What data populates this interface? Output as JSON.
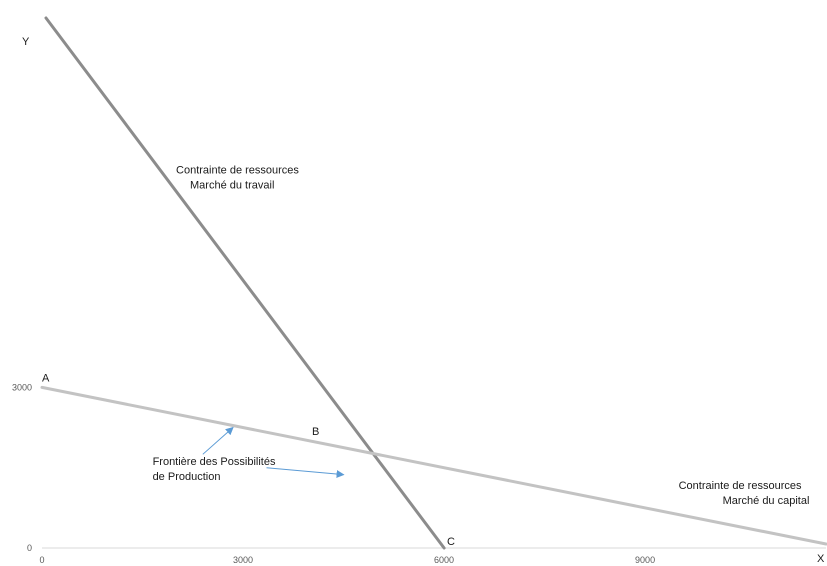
{
  "chart_data": {
    "type": "line",
    "title": "",
    "xlabel": "X",
    "ylabel": "Y",
    "xlim": [
      0,
      11700
    ],
    "ylim": [
      0,
      9900
    ],
    "x_ticks": [
      {
        "value": 0,
        "label": "0"
      },
      {
        "value": 3000,
        "label": "3000"
      },
      {
        "value": 6000,
        "label": "6000"
      },
      {
        "value": 9000,
        "label": "9000"
      }
    ],
    "y_ticks": [
      {
        "value": 0,
        "label": "0"
      },
      {
        "value": 3000,
        "label": "3000"
      }
    ],
    "grid": false,
    "series": [
      {
        "color": "#8c8c8c",
        "points": [
          [
            0,
            10000
          ],
          [
            6000,
            0
          ]
        ]
      },
      {
        "color": "#c3c3c3",
        "points": [
          [
            0,
            3000
          ],
          [
            11700,
            75
          ]
        ]
      }
    ],
    "point_labels": [
      {
        "text": "A",
        "x": 0,
        "y": 3000
      },
      {
        "text": "B",
        "x": 4000,
        "y": 2000
      },
      {
        "text": "C",
        "x": 6000,
        "y": 0
      }
    ],
    "annotations": [
      {
        "id": "labour",
        "lines": [
          "Contrainte de ressources",
          "Marché du travail"
        ],
        "x": 2000,
        "y": 7000
      },
      {
        "id": "capital",
        "lines": [
          "Contrainte de ressources",
          "Marché du capital"
        ],
        "x": 9500,
        "y": 1100
      },
      {
        "id": "ppf",
        "lines": [
          "Frontière des Possibilités",
          "de Production"
        ],
        "x": 1650,
        "y": 1550
      }
    ],
    "arrows": [
      {
        "from": [
          2400,
          1750
        ],
        "to": [
          2850,
          2250
        ],
        "color": "#5b9bd5"
      },
      {
        "from": [
          3350,
          1500
        ],
        "to": [
          4500,
          1370
        ],
        "color": "#5b9bd5"
      }
    ]
  }
}
